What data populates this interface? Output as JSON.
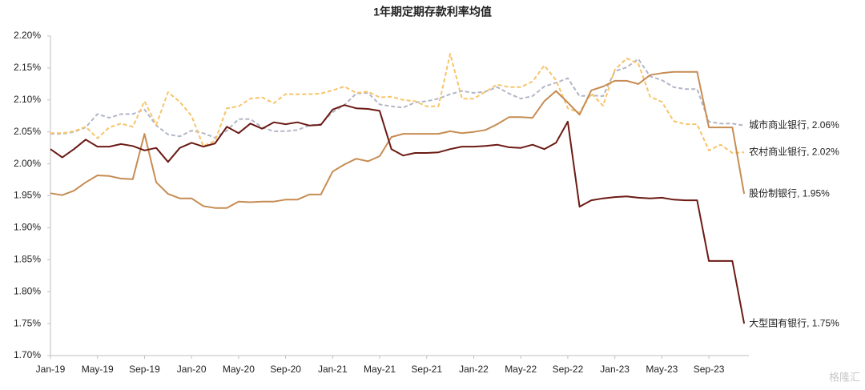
{
  "chart_data": {
    "type": "line",
    "title": "1年期定期存款利率均值",
    "categories": [
      "Jan-19",
      null,
      null,
      null,
      "May-19",
      null,
      null,
      null,
      "Sep-19",
      null,
      null,
      null,
      "Jan-20",
      null,
      null,
      null,
      "May-20",
      null,
      null,
      null,
      "Sep-20",
      null,
      null,
      null,
      "Jan-21",
      null,
      null,
      null,
      "May-21",
      null,
      null,
      null,
      "Sep-21",
      null,
      null,
      null,
      "Jan-22",
      null,
      null,
      null,
      "May-22",
      null,
      null,
      null,
      "Sep-22",
      null,
      null,
      null,
      "Jan-23",
      null,
      null,
      null,
      "May-23",
      null,
      null,
      null,
      "Sep-23",
      null,
      null,
      null
    ],
    "ylim": [
      1.7,
      2.2
    ],
    "yticks": [
      {
        "value": 1.7,
        "label": "1.70%"
      },
      {
        "value": 1.75,
        "label": "1.75%"
      },
      {
        "value": 1.8,
        "label": "1.80%"
      },
      {
        "value": 1.85,
        "label": "1.85%"
      },
      {
        "value": 1.9,
        "label": "1.90%"
      },
      {
        "value": 1.95,
        "label": "1.95%"
      },
      {
        "value": 2.0,
        "label": "2.00%"
      },
      {
        "value": 2.05,
        "label": "2.05%"
      },
      {
        "value": 2.1,
        "label": "2.10%"
      },
      {
        "value": 2.15,
        "label": "2.15%"
      },
      {
        "value": 2.2,
        "label": "2.20%"
      }
    ],
    "grid": false,
    "series": [
      {
        "label": "城市商业银行, 2.06%",
        "color": "#b3b6c6",
        "dashed": true,
        "values": [
          2.047,
          2.047,
          2.05,
          2.057,
          2.078,
          2.072,
          2.078,
          2.078,
          2.085,
          2.06,
          2.046,
          2.043,
          2.052,
          2.048,
          2.041,
          2.052,
          2.07,
          2.07,
          2.057,
          2.051,
          2.051,
          2.053,
          2.06,
          2.062,
          2.081,
          2.092,
          2.11,
          2.111,
          2.093,
          2.09,
          2.088,
          2.096,
          2.098,
          2.102,
          2.109,
          2.114,
          2.111,
          2.113,
          2.12,
          2.11,
          2.102,
          2.106,
          2.121,
          2.127,
          2.134,
          2.106,
          2.107,
          2.106,
          2.145,
          2.151,
          2.164,
          2.137,
          2.131,
          2.12,
          2.117,
          2.117,
          2.066,
          2.063,
          2.063,
          2.06
        ]
      },
      {
        "label": "农村商业银行, 2.02%",
        "color": "#f7c46a",
        "dashed": true,
        "values": [
          2.048,
          2.048,
          2.051,
          2.058,
          2.04,
          2.057,
          2.063,
          2.058,
          2.098,
          2.061,
          2.112,
          2.097,
          2.075,
          2.028,
          2.036,
          2.087,
          2.09,
          2.102,
          2.104,
          2.095,
          2.109,
          2.109,
          2.109,
          2.11,
          2.115,
          2.121,
          2.111,
          2.113,
          2.104,
          2.105,
          2.1,
          2.098,
          2.09,
          2.09,
          2.172,
          2.102,
          2.102,
          2.113,
          2.124,
          2.12,
          2.12,
          2.129,
          2.154,
          2.131,
          2.087,
          2.08,
          2.11,
          2.091,
          2.147,
          2.165,
          2.157,
          2.105,
          2.097,
          2.067,
          2.062,
          2.062,
          2.021,
          2.03,
          2.017,
          2.018
        ]
      },
      {
        "label": "股份制银行, 1.95%",
        "color": "#c68c53",
        "dashed": false,
        "values": [
          1.954,
          1.951,
          1.958,
          1.971,
          1.982,
          1.981,
          1.977,
          1.976,
          2.047,
          1.971,
          1.953,
          1.946,
          1.946,
          1.934,
          1.931,
          1.931,
          1.941,
          1.94,
          1.941,
          1.941,
          1.944,
          1.944,
          1.952,
          1.952,
          1.988,
          1.999,
          2.008,
          2.004,
          2.012,
          2.042,
          2.047,
          2.047,
          2.047,
          2.047,
          2.051,
          2.048,
          2.05,
          2.053,
          2.062,
          2.073,
          2.073,
          2.072,
          2.098,
          2.114,
          2.096,
          2.077,
          2.115,
          2.121,
          2.13,
          2.13,
          2.125,
          2.139,
          2.142,
          2.144,
          2.144,
          2.144,
          2.057,
          2.057,
          2.057,
          1.953
        ]
      },
      {
        "label": "大型国有银行, 1.75%",
        "color": "#6b1a14",
        "dashed": false,
        "values": [
          2.023,
          2.01,
          2.023,
          2.038,
          2.027,
          2.027,
          2.031,
          2.028,
          2.021,
          2.025,
          2.003,
          2.025,
          2.033,
          2.027,
          2.032,
          2.058,
          2.048,
          2.063,
          2.055,
          2.065,
          2.062,
          2.065,
          2.06,
          2.061,
          2.085,
          2.092,
          2.087,
          2.086,
          2.083,
          2.023,
          2.013,
          2.017,
          2.017,
          2.018,
          2.023,
          2.027,
          2.027,
          2.028,
          2.03,
          2.026,
          2.025,
          2.03,
          2.023,
          2.033,
          2.066,
          1.933,
          1.943,
          1.946,
          1.948,
          1.949,
          1.947,
          1.946,
          1.947,
          1.944,
          1.943,
          1.943,
          1.848,
          1.848,
          1.848,
          1.75
        ]
      }
    ],
    "watermark": "格隆汇"
  }
}
